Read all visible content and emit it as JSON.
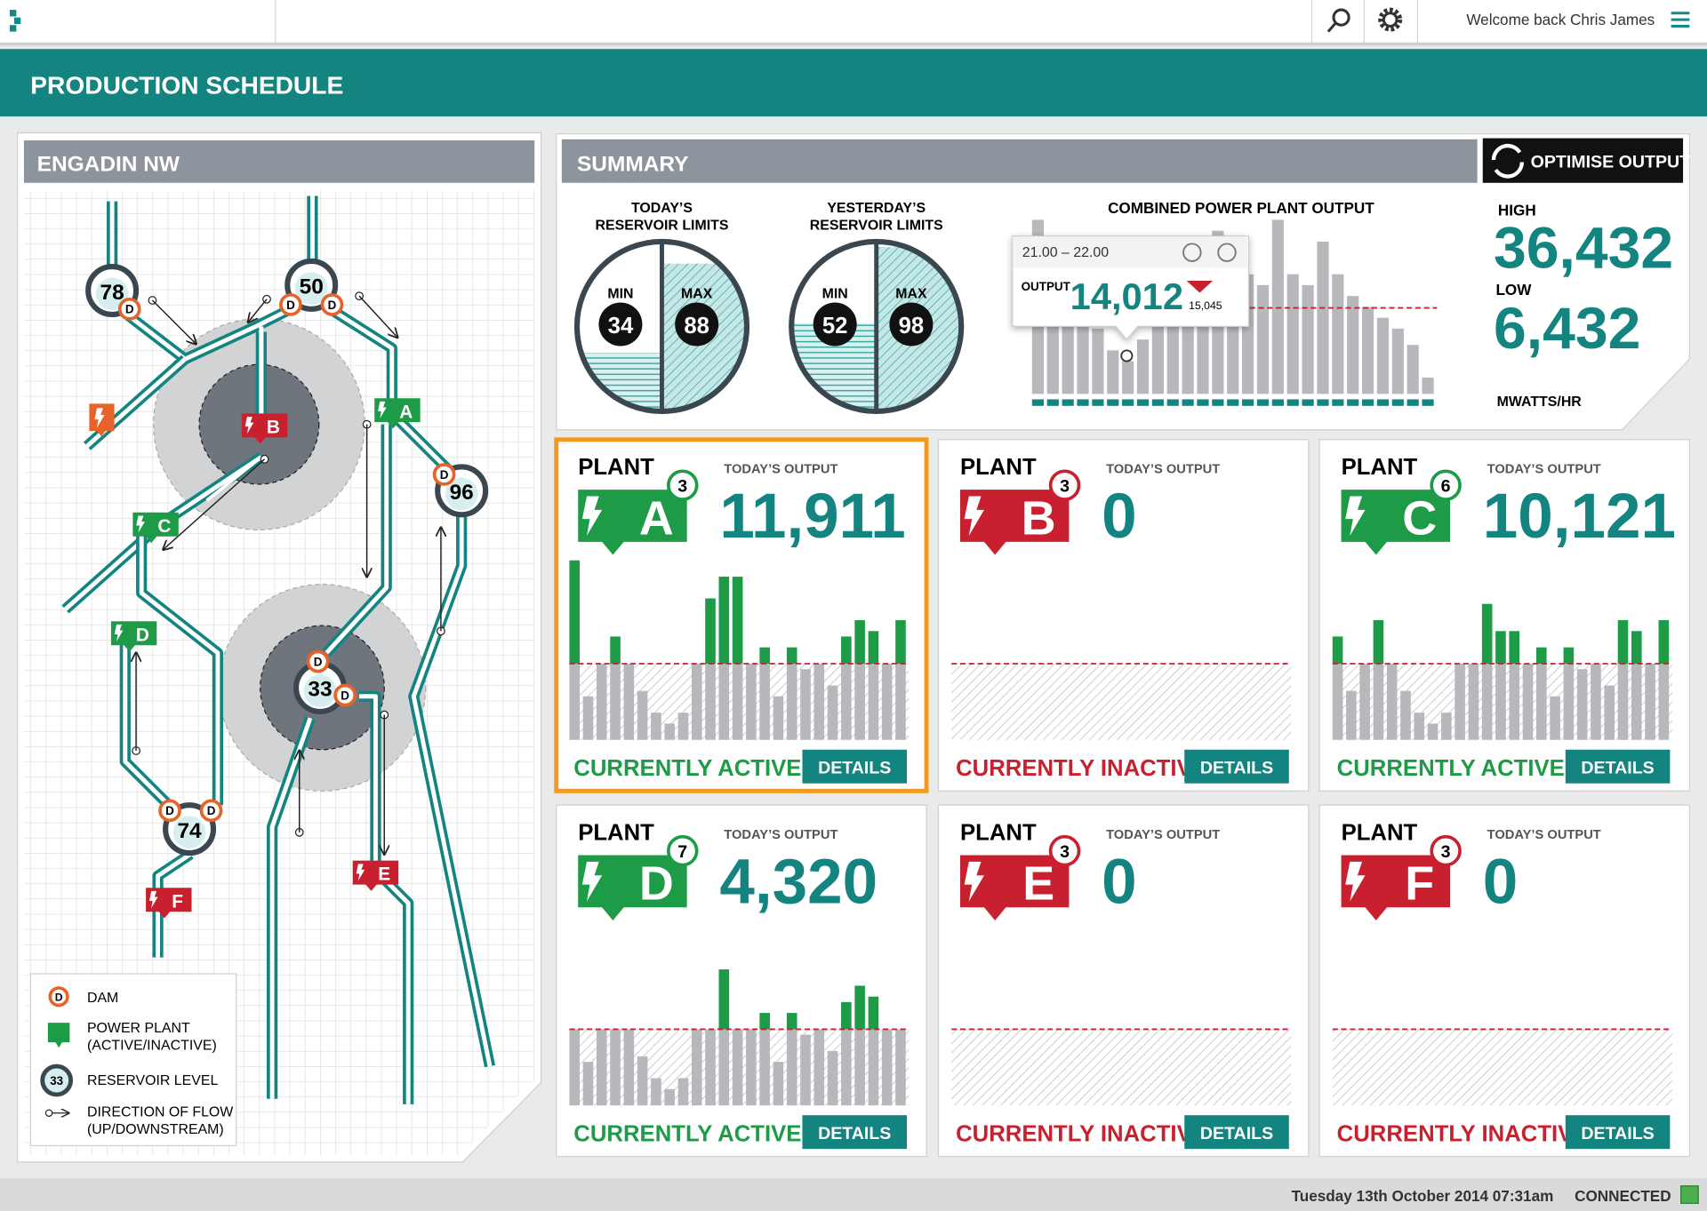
{
  "header": {
    "title": "PRODUCTION SCHEDULE",
    "welcome": "Welcome back Chris James"
  },
  "map": {
    "title": "ENGADIN NW",
    "reservoirs": [
      78,
      50,
      96,
      33,
      74
    ]
  },
  "legend": {
    "dam_symbol": "D",
    "dam": "DAM",
    "plant": "POWER PLANT",
    "plant_note": "(ACTIVE/INACTIVE)",
    "reservoir_sample": 33,
    "reservoir": "RESERVOIR LEVEL",
    "flow": "DIRECTION OF FLOW",
    "flow_note": "(UP/DOWNSTREAM)"
  },
  "summary": {
    "title": "SUMMARY",
    "button": "OPTIMISE OUTPUT",
    "min_label": "MIN",
    "max_label": "MAX",
    "gauges": [
      {
        "title_lines": [
          "TODAY’S",
          "RESERVOIR LIMITS"
        ],
        "min": 34,
        "max": 88
      },
      {
        "title_lines": [
          "YESTERDAY’S",
          "RESERVOIR LIMITS"
        ],
        "min": 52,
        "max": 98
      }
    ],
    "chart": {
      "title": "COMBINED POWER  PLANT OUTPUT",
      "limit": 79,
      "values": [
        160,
        120,
        95,
        70,
        60,
        40,
        30,
        50,
        80,
        100,
        90,
        100,
        150,
        130,
        110,
        100,
        160,
        110,
        100,
        140,
        110,
        90,
        80,
        70,
        60,
        45,
        15
      ],
      "tooltip": {
        "range": "21.00 – 22.00",
        "label": "OUTPUT",
        "value": "14,012",
        "previous": "15,045"
      }
    },
    "high_label": "HIGH",
    "high": "36,432",
    "low_label": "LOW",
    "low": "6,432",
    "unit": "MWATTS/HR"
  },
  "plant_label": "PLANT",
  "output_label": "TODAY’S OUTPUT",
  "details_label": "DETAILS",
  "limit": 70,
  "plants": [
    {
      "letter": "A",
      "count": 3,
      "output": "11,911",
      "status": "CURRENTLY ACTIVE",
      "active": true,
      "selected": true,
      "bars": [
        165,
        40,
        70,
        95,
        70,
        45,
        25,
        15,
        25,
        70,
        130,
        150,
        150,
        70,
        85,
        40,
        85,
        65,
        70,
        50,
        95,
        110,
        100,
        70,
        110
      ]
    },
    {
      "letter": "B",
      "count": 3,
      "output": "0",
      "status": "CURRENTLY INACTIVE",
      "active": false,
      "selected": false,
      "bars": []
    },
    {
      "letter": "C",
      "count": 6,
      "output": "10,121",
      "status": "CURRENTLY ACTIVE",
      "active": true,
      "selected": false,
      "bars": [
        95,
        45,
        70,
        110,
        70,
        45,
        25,
        15,
        25,
        70,
        70,
        125,
        100,
        100,
        70,
        85,
        40,
        85,
        65,
        70,
        50,
        110,
        100,
        70,
        110
      ]
    },
    {
      "letter": "D",
      "count": 7,
      "output": "4,320",
      "status": "CURRENTLY ACTIVE",
      "active": true,
      "selected": false,
      "bars": [
        70,
        40,
        70,
        70,
        70,
        45,
        25,
        15,
        25,
        70,
        70,
        125,
        70,
        70,
        85,
        40,
        85,
        65,
        70,
        50,
        95,
        110,
        100,
        70,
        70
      ]
    },
    {
      "letter": "E",
      "count": 3,
      "output": "0",
      "status": "CURRENTLY INACTIVE",
      "active": false,
      "selected": false,
      "bars": []
    },
    {
      "letter": "F",
      "count": 3,
      "output": "0",
      "status": "CURRENTLY INACTIVE",
      "active": false,
      "selected": false,
      "bars": []
    }
  ],
  "footer": {
    "datetime": "Tuesday 13th October 2014 07:31am",
    "status": "CONNECTED"
  }
}
